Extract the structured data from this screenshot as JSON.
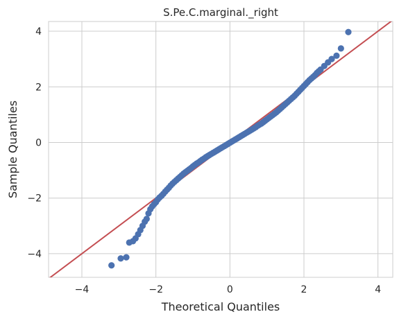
{
  "chart_data": {
    "type": "scatter",
    "title": "S.Pe.C.marginal._right",
    "xlabel": "Theoretical Quantiles",
    "ylabel": "Sample Quantiles",
    "xlim": [
      -4.9,
      4.4
    ],
    "ylim": [
      -4.85,
      4.35
    ],
    "xticks": [
      -4,
      -2,
      0,
      2,
      4
    ],
    "yticks": [
      -4,
      -2,
      0,
      2,
      4
    ],
    "xtick_labels": [
      "−4",
      "−2",
      "0",
      "2",
      "4"
    ],
    "ytick_labels": [
      "−4",
      "−2",
      "0",
      "2",
      "4"
    ],
    "grid": true,
    "reference_line": {
      "slope": 1,
      "intercept": 0,
      "color": "#c44e52"
    },
    "point_color": "#4c72b0",
    "series": [
      {
        "x": [
          -3.2,
          -2.95,
          -2.8,
          -2.72,
          -2.62,
          -2.55,
          -2.48,
          -2.42,
          -2.36,
          -2.3,
          -2.25,
          -2.2,
          -2.15,
          -2.1,
          -2.05,
          -2.0,
          -1.95,
          -1.9,
          -1.85,
          -1.8,
          -1.75,
          -1.7,
          -1.65,
          -1.6,
          -1.55,
          -1.5,
          -1.45,
          -1.4,
          -1.35,
          -1.3,
          -1.25,
          -1.2,
          -1.15,
          -1.1,
          -1.05,
          -1.0,
          -0.95,
          -0.9,
          -0.85,
          -0.8,
          -0.75,
          -0.7,
          -0.65,
          -0.6,
          -0.55,
          -0.5,
          -0.45,
          -0.4,
          -0.35,
          -0.3,
          -0.25,
          -0.2,
          -0.15,
          -0.1,
          -0.05,
          0.0,
          0.05,
          0.1,
          0.15,
          0.2,
          0.25,
          0.3,
          0.35,
          0.4,
          0.45,
          0.5,
          0.55,
          0.6,
          0.65,
          0.7,
          0.75,
          0.8,
          0.85,
          0.9,
          0.95,
          1.0,
          1.05,
          1.1,
          1.15,
          1.2,
          1.25,
          1.3,
          1.35,
          1.4,
          1.45,
          1.5,
          1.55,
          1.6,
          1.65,
          1.7,
          1.75,
          1.8,
          1.85,
          1.9,
          1.95,
          2.0,
          2.05,
          2.1,
          2.15,
          2.2,
          2.25,
          2.3,
          2.35,
          2.4,
          2.45,
          2.55,
          2.65,
          2.75,
          2.88,
          3.0,
          3.2
        ],
        "y": [
          -4.42,
          -4.17,
          -4.13,
          -3.6,
          -3.55,
          -3.45,
          -3.3,
          -3.15,
          -3.0,
          -2.85,
          -2.75,
          -2.55,
          -2.4,
          -2.3,
          -2.22,
          -2.15,
          -2.05,
          -1.98,
          -1.92,
          -1.85,
          -1.77,
          -1.7,
          -1.63,
          -1.55,
          -1.48,
          -1.42,
          -1.36,
          -1.3,
          -1.24,
          -1.18,
          -1.12,
          -1.07,
          -1.02,
          -0.97,
          -0.92,
          -0.86,
          -0.81,
          -0.76,
          -0.72,
          -0.67,
          -0.62,
          -0.58,
          -0.53,
          -0.49,
          -0.45,
          -0.41,
          -0.37,
          -0.33,
          -0.29,
          -0.25,
          -0.21,
          -0.17,
          -0.13,
          -0.09,
          -0.05,
          -0.01,
          0.03,
          0.07,
          0.11,
          0.15,
          0.19,
          0.23,
          0.27,
          0.31,
          0.35,
          0.39,
          0.43,
          0.47,
          0.51,
          0.55,
          0.6,
          0.64,
          0.68,
          0.73,
          0.78,
          0.83,
          0.88,
          0.93,
          0.98,
          1.03,
          1.08,
          1.14,
          1.2,
          1.26,
          1.32,
          1.38,
          1.44,
          1.5,
          1.56,
          1.62,
          1.68,
          1.75,
          1.82,
          1.89,
          1.96,
          2.03,
          2.1,
          2.17,
          2.24,
          2.3,
          2.36,
          2.42,
          2.5,
          2.56,
          2.62,
          2.75,
          2.88,
          3.0,
          3.12,
          3.38,
          3.97
        ]
      }
    ]
  }
}
